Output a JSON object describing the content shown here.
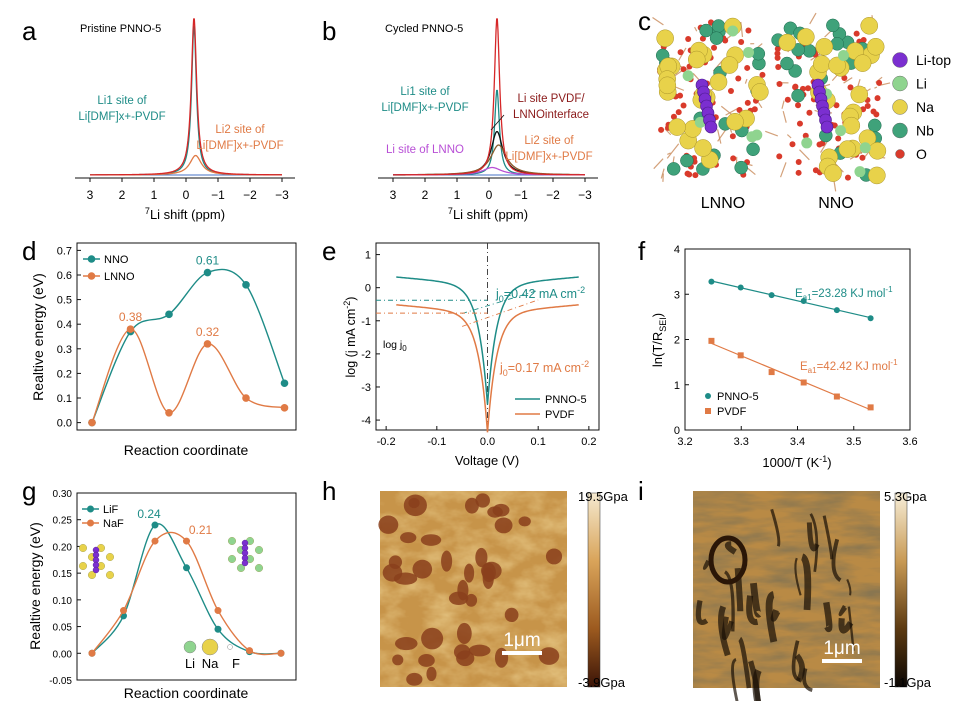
{
  "colors": {
    "teal": "#1e8c87",
    "orange": "#e07a45",
    "red": "#d62728",
    "darkred": "#8b1a1a",
    "brown": "#8b5a2b",
    "purple": "#b84fd6",
    "blue": "#4472c4",
    "black": "#111111"
  },
  "panels": {
    "a": {
      "label": "a",
      "title": "Pristine PNNO-5",
      "xlabel": "7Li shift (ppm)",
      "xlabel_sup": "7",
      "xlabel_main": "Li shift (ppm)",
      "ann_li1_l1": "Li1 site of",
      "ann_li1_l2": "Li[DMF]x+-PVDF",
      "ann_li2_l1": "Li2 site of",
      "ann_li2_l2": "Li[DMF]x+-PVDF"
    },
    "b": {
      "label": "b",
      "title": "Cycled PNNO-5",
      "xlabel": "7Li shift (ppm)",
      "xlabel_sup": "7",
      "xlabel_main": "Li shift (ppm)",
      "ann_li1_l1": "Li1 site of",
      "ann_li1_l2": "Li[DMF]x+-PVDF",
      "ann_pvdf_l1": "Li site PVDF/",
      "ann_pvdf_l2": "LNNOinterface",
      "ann_li2_l1": "Li2 site of",
      "ann_li2_l2": "Li[DMF]x+-PVDF",
      "ann_lnno": "Li site of LNNO"
    },
    "c": {
      "label": "c",
      "structure_left": "LNNO",
      "structure_right": "NNO",
      "legend": [
        {
          "label": "Li-top",
          "color": "#7b2fd0"
        },
        {
          "label": "Li",
          "color": "#8fd48f"
        },
        {
          "label": "Na",
          "color": "#e8d24a"
        },
        {
          "label": "Nb",
          "color": "#3fa27a"
        },
        {
          "label": "O",
          "color": "#d93a2b"
        }
      ]
    },
    "d": {
      "label": "d"
    },
    "e": {
      "label": "e",
      "ann_j_nno": "j0=0.42 mA cm-2",
      "ann_j_pvdf": "j0=0.17 mA cm-2",
      "ann_logj": "log j0"
    },
    "f": {
      "label": "f"
    },
    "g": {
      "label": "g"
    },
    "h": {
      "label": "h",
      "scale_max": "19.5Gpa",
      "scale_min": "-3.9Gpa",
      "scalebar": "1μm"
    },
    "i": {
      "label": "i",
      "scale_max": "5.3Gpa",
      "scale_min": "-1.1Gpa",
      "scalebar": "1μm"
    }
  },
  "chart_data": [
    {
      "panel": "a",
      "type": "line",
      "title": "Pristine PNNO-5",
      "xlabel": "7Li shift (ppm)",
      "xlim": [
        3,
        -3
      ],
      "xticks": [
        "3",
        "2",
        "1",
        "0",
        "−1",
        "−2",
        "−3"
      ],
      "series": [
        {
          "name": "Li1 site of Li[DMF]x+-PVDF",
          "color": "#1e8c87",
          "center": -0.25,
          "width": 0.09,
          "height": 1.0
        },
        {
          "name": "Li2 site of Li[DMF]x+-PVDF",
          "color": "#e07a45",
          "center": -0.3,
          "width": 0.22,
          "height": 0.13
        },
        {
          "name": "fit",
          "color": "#d62728",
          "center": -0.25,
          "width": 0.1,
          "height": 1.05
        }
      ]
    },
    {
      "panel": "b",
      "type": "line",
      "title": "Cycled PNNO-5",
      "xlabel": "7Li shift (ppm)",
      "xlim": [
        3,
        -3
      ],
      "xticks": [
        "3",
        "2",
        "1",
        "0",
        "−1",
        "−2",
        "−3"
      ],
      "series": [
        {
          "name": "Li1 site of Li[DMF]x+-PVDF",
          "color": "#1e8c87",
          "center": -0.25,
          "width": 0.09,
          "height": 0.57
        },
        {
          "name": "Li site PVDF/ LNNOinterface",
          "color": "#111111",
          "center": -0.25,
          "width": 0.22,
          "height": 0.29
        },
        {
          "name": "Li2 site of Li[DMF]x+-PVDF",
          "color": "#8b5a2b",
          "center": -0.3,
          "width": 0.3,
          "height": 0.2
        },
        {
          "name": "Li site of LNNO",
          "color": "#b84fd6",
          "center": -0.1,
          "width": 0.35,
          "height": 0.05
        },
        {
          "name": "fit",
          "color": "#d62728",
          "center": -0.25,
          "width": 0.1,
          "height": 1.05
        }
      ]
    },
    {
      "panel": "d",
      "type": "line",
      "xlabel": "Reaction coordinate",
      "ylabel": "Realtive energy (eV)",
      "ylim": [
        -0.03,
        0.73
      ],
      "yticks": [
        "0.0",
        "0.1",
        "0.2",
        "0.3",
        "0.4",
        "0.5",
        "0.6",
        "0.7"
      ],
      "x": [
        0,
        1,
        2,
        3,
        4,
        5
      ],
      "series": [
        {
          "name": "NNO",
          "color": "#1e8c87",
          "values": [
            0.0,
            0.37,
            0.44,
            0.61,
            0.56,
            0.16
          ]
        },
        {
          "name": "LNNO",
          "color": "#e07a45",
          "values": [
            0.0,
            0.38,
            0.04,
            0.32,
            0.1,
            0.06
          ]
        }
      ],
      "data_labels": [
        {
          "text": "0.61",
          "series": 0,
          "index": 3
        },
        {
          "text": "0.38",
          "series": 1,
          "index": 1
        },
        {
          "text": "0.32",
          "series": 1,
          "index": 3
        }
      ],
      "legend": "top-left"
    },
    {
      "panel": "e",
      "type": "line",
      "xlabel": "Voltage (V)",
      "ylabel": "log (j mA cm-2)",
      "xlim": [
        -0.22,
        0.22
      ],
      "ylim": [
        -4.3,
        1.35
      ],
      "xticks": [
        "-0.2",
        "-0.1",
        "0.0",
        "0.1",
        "0.2"
      ],
      "yticks": [
        "1",
        "0",
        "-1",
        "-2",
        "-3",
        "-4"
      ],
      "series": [
        {
          "name": "PNNO-5",
          "color": "#1e8c87",
          "j0_log": -0.38
        },
        {
          "name": "PVDF",
          "color": "#e07a45",
          "j0_log": -0.77
        }
      ],
      "legend": "bottom-right"
    },
    {
      "panel": "f",
      "type": "scatter",
      "xlabel": "1000/T (K-1)",
      "ylabel": "ln(T/RSEI)",
      "xlim": [
        3.2,
        3.6
      ],
      "ylim": [
        0,
        4
      ],
      "xticks": [
        "3.2",
        "3.3",
        "3.4",
        "3.5",
        "3.6"
      ],
      "yticks": [
        "0",
        "1",
        "2",
        "3",
        "4"
      ],
      "series": [
        {
          "name": "PNNO-5",
          "color": "#1e8c87",
          "marker": "circle",
          "x": [
            3.247,
            3.299,
            3.354,
            3.411,
            3.47,
            3.53
          ],
          "y": [
            3.28,
            3.15,
            2.98,
            2.85,
            2.65,
            2.47
          ],
          "annotation": "Ea1=23.28 KJ mol-1"
        },
        {
          "name": "PVDF",
          "color": "#e07a45",
          "marker": "square",
          "x": [
            3.247,
            3.299,
            3.354,
            3.411,
            3.47,
            3.53
          ],
          "y": [
            1.97,
            1.65,
            1.28,
            1.05,
            0.74,
            0.5
          ],
          "annotation": "Ea1=42.42 KJ mol-1"
        }
      ],
      "legend": "bottom-left"
    },
    {
      "panel": "g",
      "type": "line",
      "xlabel": "Reaction coordinate",
      "ylabel": "Realtive energy (eV)",
      "ylim": [
        -0.05,
        0.3
      ],
      "yticks": [
        "-0.05",
        "0.00",
        "0.05",
        "0.10",
        "0.15",
        "0.20",
        "0.25",
        "0.30"
      ],
      "x": [
        0,
        1,
        2,
        3,
        4,
        5,
        6
      ],
      "series": [
        {
          "name": "LiF",
          "color": "#1e8c87",
          "values": [
            0.0,
            0.07,
            0.24,
            0.16,
            0.045,
            0.003,
            0.0
          ]
        },
        {
          "name": "NaF",
          "color": "#e07a45",
          "values": [
            0.0,
            0.08,
            0.21,
            0.21,
            0.08,
            0.005,
            0.0
          ]
        }
      ],
      "data_labels": [
        {
          "text": "0.24",
          "series": 0,
          "index": 2
        },
        {
          "text": "0.21",
          "series": 1,
          "index": 3
        }
      ],
      "inset_legend": [
        "Li",
        "Na",
        "F"
      ],
      "legend": "top-left"
    }
  ]
}
